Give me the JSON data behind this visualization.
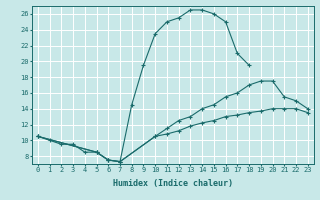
{
  "xlabel": "Humidex (Indice chaleur)",
  "xlim": [
    -0.5,
    23.5
  ],
  "ylim": [
    7,
    27
  ],
  "yticks": [
    8,
    10,
    12,
    14,
    16,
    18,
    20,
    22,
    24,
    26
  ],
  "xticks": [
    0,
    1,
    2,
    3,
    4,
    5,
    6,
    7,
    8,
    9,
    10,
    11,
    12,
    13,
    14,
    15,
    16,
    17,
    18,
    19,
    20,
    21,
    22,
    23
  ],
  "background_color": "#c8e8e8",
  "grid_color": "#ffffff",
  "line_color": "#1a6b6b",
  "lines": [
    {
      "x": [
        0,
        1,
        2,
        3,
        4,
        5,
        6,
        7,
        8,
        9,
        10,
        11,
        12,
        13,
        14,
        15,
        16,
        17,
        18
      ],
      "y": [
        10.5,
        10.0,
        9.5,
        9.5,
        8.5,
        8.5,
        7.5,
        7.3,
        14.5,
        19.5,
        23.5,
        25.0,
        25.5,
        26.5,
        26.5,
        26.0,
        25.0,
        21.0,
        19.5
      ]
    },
    {
      "x": [
        0,
        5,
        6,
        7,
        10,
        11,
        12,
        13,
        14,
        15,
        16,
        17,
        18,
        19,
        20,
        21,
        22,
        23
      ],
      "y": [
        10.5,
        8.5,
        7.5,
        7.3,
        10.5,
        11.5,
        12.5,
        13.0,
        14.0,
        14.5,
        15.5,
        16.0,
        17.0,
        17.5,
        17.5,
        15.5,
        15.0,
        14.0
      ]
    },
    {
      "x": [
        0,
        5,
        6,
        7,
        10,
        11,
        12,
        13,
        14,
        15,
        16,
        17,
        18,
        19,
        20,
        21,
        22,
        23
      ],
      "y": [
        10.5,
        8.5,
        7.5,
        7.3,
        10.5,
        10.8,
        11.2,
        11.8,
        12.2,
        12.5,
        13.0,
        13.2,
        13.5,
        13.7,
        14.0,
        14.0,
        14.0,
        13.5
      ]
    }
  ]
}
